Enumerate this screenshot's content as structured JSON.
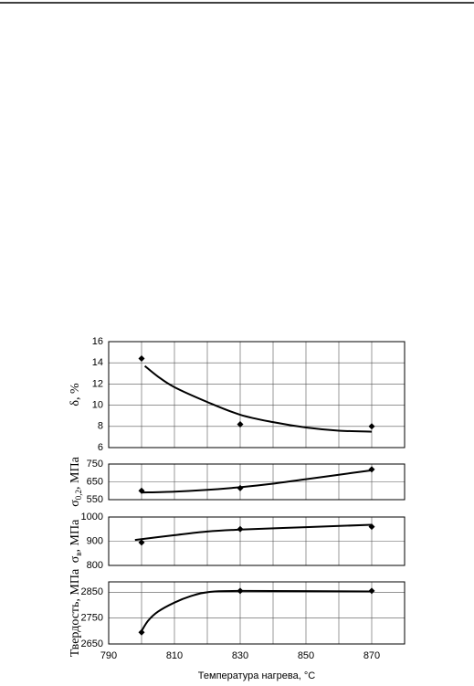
{
  "chart_data": [
    {
      "type": "line",
      "ylabel": "δ, %",
      "xlim": [
        790,
        880
      ],
      "xgrid": [
        790,
        800,
        810,
        820,
        830,
        840,
        850,
        860,
        870,
        880
      ],
      "ylim": [
        6,
        16
      ],
      "yticks": [
        6,
        8,
        10,
        12,
        14,
        16
      ],
      "grid": true,
      "x": [
        800,
        830,
        870
      ],
      "series": [
        {
          "marker": "diamond",
          "color": "#000000",
          "values": [
            14.4,
            8.2,
            8.0
          ]
        },
        {
          "marker": "none",
          "color": "#000000",
          "x": [
            801,
            805,
            810,
            820,
            830,
            840,
            850,
            860,
            870
          ],
          "values": [
            13.7,
            12.7,
            11.7,
            10.3,
            9.1,
            8.4,
            7.9,
            7.6,
            7.5
          ]
        }
      ]
    },
    {
      "type": "line",
      "ylabel": "σ",
      "ylabel_sub": "0,2",
      "ylabel_rest": ", МПа",
      "xlim": [
        790,
        880
      ],
      "xgrid": [
        790,
        800,
        810,
        820,
        830,
        840,
        850,
        860,
        870,
        880
      ],
      "ylim": [
        550,
        750
      ],
      "yticks": [
        550,
        650,
        750
      ],
      "grid": true,
      "x": [
        800,
        830,
        870
      ],
      "series": [
        {
          "marker": "diamond",
          "color": "#000000",
          "values": [
            600,
            615,
            720
          ]
        },
        {
          "marker": "none",
          "color": "#000000",
          "x": [
            800,
            810,
            820,
            830,
            840,
            850,
            860,
            870
          ],
          "values": [
            590,
            595,
            605,
            620,
            640,
            665,
            690,
            715
          ]
        }
      ]
    },
    {
      "type": "line",
      "ylabel": "σ",
      "ylabel_sub": "в",
      "ylabel_rest": ", МПа",
      "xlim": [
        790,
        880
      ],
      "xgrid": [
        790,
        800,
        810,
        820,
        830,
        840,
        850,
        860,
        870,
        880
      ],
      "ylim": [
        800,
        1000
      ],
      "yticks": [
        800,
        900,
        1000
      ],
      "grid": true,
      "x": [
        800,
        830,
        870
      ],
      "series": [
        {
          "marker": "diamond",
          "color": "#000000",
          "values": [
            895,
            950,
            960
          ]
        },
        {
          "marker": "none",
          "color": "#000000",
          "x": [
            798,
            810,
            820,
            830,
            850,
            870
          ],
          "values": [
            905,
            925,
            940,
            948,
            958,
            968
          ]
        }
      ]
    },
    {
      "type": "line",
      "ylabel": "Твердость, МПа",
      "xlabel": "Температура нагрева, °C",
      "xlim": [
        790,
        880
      ],
      "xticks": [
        790,
        810,
        830,
        850,
        870
      ],
      "xgrid": [
        790,
        800,
        810,
        820,
        830,
        840,
        850,
        860,
        870,
        880
      ],
      "ylim": [
        2650,
        2890
      ],
      "yticks": [
        2650,
        2750,
        2850
      ],
      "grid": true,
      "x": [
        800,
        830,
        870
      ],
      "series": [
        {
          "marker": "diamond",
          "color": "#000000",
          "values": [
            2695,
            2855,
            2855
          ]
        },
        {
          "marker": "none",
          "color": "#000000",
          "x": [
            800,
            802,
            805,
            810,
            815,
            820,
            830,
            870
          ],
          "values": [
            2700,
            2740,
            2775,
            2810,
            2835,
            2850,
            2855,
            2853
          ]
        }
      ]
    }
  ]
}
